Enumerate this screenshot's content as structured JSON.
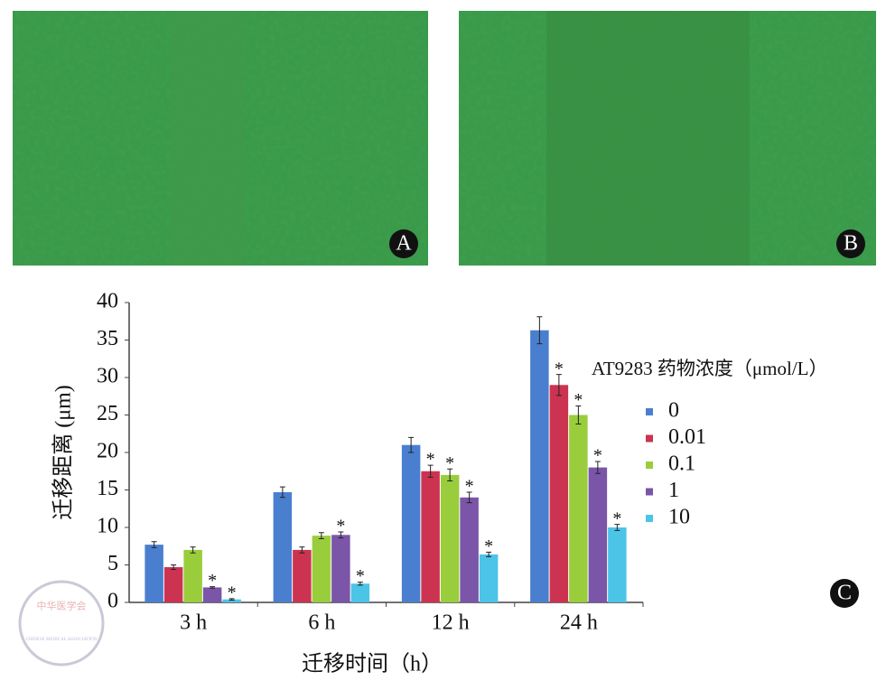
{
  "panels": [
    {
      "label": "A"
    },
    {
      "label": "B"
    }
  ],
  "chart_data": {
    "type": "bar",
    "panel_label": "C",
    "y_label": "迁移距离 (μm)",
    "x_label": "迁移时间（h）",
    "legend_title": "AT9283 药物浓度（μmol/L）",
    "categories": [
      "3 h",
      "6 h",
      "12 h",
      "24 h"
    ],
    "ylim": [
      0,
      40
    ],
    "yticks": [
      0,
      5,
      10,
      15,
      20,
      25,
      30,
      35,
      40
    ],
    "series": [
      {
        "name": "0",
        "color": "#4a7fcf",
        "values": [
          7.7,
          14.7,
          21,
          36.3
        ],
        "errors": [
          0.4,
          0.7,
          1.0,
          1.8
        ],
        "labels": [
          null,
          null,
          null,
          null
        ]
      },
      {
        "name": "0.01",
        "color": "#cc3350",
        "values": [
          4.7,
          7.0,
          17.5,
          29
        ],
        "errors": [
          0.3,
          0.4,
          0.8,
          1.4
        ],
        "labels": [
          null,
          null,
          "*",
          "*"
        ]
      },
      {
        "name": "0.1",
        "color": "#9acd3c",
        "values": [
          7.0,
          8.9,
          17,
          25
        ],
        "errors": [
          0.4,
          0.4,
          0.8,
          1.2
        ],
        "labels": [
          null,
          null,
          "*",
          "*"
        ]
      },
      {
        "name": "1",
        "color": "#7a55a8",
        "values": [
          2.0,
          9.0,
          14,
          18
        ],
        "errors": [
          0.1,
          0.4,
          0.7,
          0.8
        ],
        "labels": [
          "*",
          "*",
          "*",
          "*"
        ]
      },
      {
        "name": "10",
        "color": "#4cc4e8",
        "values": [
          0.4,
          2.5,
          6.4,
          10
        ],
        "errors": [
          0.1,
          0.2,
          0.3,
          0.4
        ],
        "labels": [
          "*",
          "*",
          "*",
          "*"
        ]
      }
    ]
  },
  "watermark": {
    "name": "中华医学会",
    "english": "CHINESE MEDICAL ASSOCIATION"
  }
}
